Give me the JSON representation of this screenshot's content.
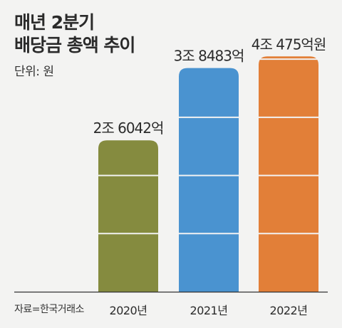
{
  "header": {
    "title_line1": "매년 2분기",
    "title_line2": "배당금 총액 추이",
    "unit": "단위: 원"
  },
  "source": "자료=한국거래소",
  "chart_data": {
    "type": "bar",
    "title": "매년 2분기 배당금 총액 추이",
    "unit": "원",
    "categories": [
      "2020년",
      "2021년",
      "2022년"
    ],
    "values": [
      2.6042,
      3.8483,
      4.0475
    ],
    "value_unit": "조원",
    "data_labels": [
      "2조 6042억",
      "3조 8483억",
      "4조 475억원"
    ],
    "colors": [
      "#858b3f",
      "#4a93d0",
      "#e27f38"
    ],
    "ylim": [
      0,
      4.1
    ],
    "grid": false,
    "legend": "none"
  }
}
